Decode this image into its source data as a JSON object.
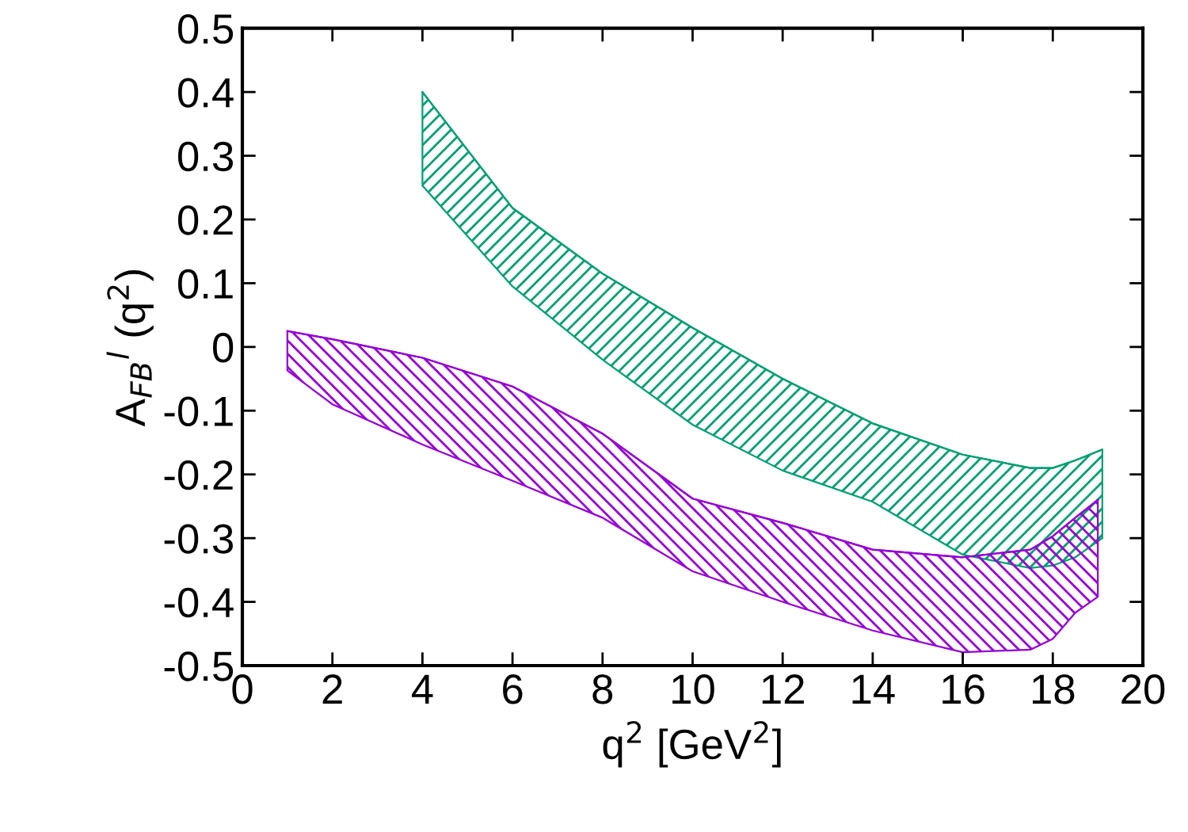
{
  "chart_data": {
    "type": "line",
    "xlabel": "q$^{2}$ [GeV$^{2}$]",
    "ylabel": "A$_{FB}$$^{l}$ (q$^{2}$)",
    "xlim": [
      0,
      20
    ],
    "ylim": [
      -0.5,
      0.5
    ],
    "xticks": [
      0,
      2,
      4,
      6,
      8,
      10,
      12,
      14,
      16,
      18,
      20
    ],
    "yticks": [
      -0.5,
      -0.4,
      -0.3,
      -0.2,
      -0.1,
      0,
      0.1,
      0.2,
      0.3,
      0.4,
      0.5
    ],
    "grid": false,
    "legend": false,
    "series": [
      {
        "color": "#009e73",
        "values": [
          0.4,
          0.218,
          0.115,
          0.03,
          -0.05,
          -0.12,
          -0.169,
          -0.19,
          -0.19,
          -0.178,
          -0.161
        ],
        "x": [
          4,
          6,
          8,
          10,
          12,
          14,
          16,
          17.5,
          18,
          18.5,
          19.1
        ],
        "upper": [
          0.4,
          0.218,
          0.115,
          0.03,
          -0.05,
          -0.12,
          -0.169,
          -0.19,
          -0.19,
          -0.178,
          -0.161
        ],
        "lower": [
          0.253,
          0.095,
          -0.02,
          -0.122,
          -0.194,
          -0.243,
          -0.326,
          -0.347,
          -0.343,
          -0.33,
          -0.3
        ]
      },
      {
        "color": "#9400d3",
        "values": [
          0.025,
          0.012,
          -0.017,
          -0.062,
          -0.136,
          -0.238,
          -0.276,
          -0.318,
          -0.33,
          -0.318,
          -0.297,
          -0.268,
          -0.24
        ],
        "x": [
          1,
          2,
          4,
          6,
          8,
          10,
          12,
          14,
          16,
          17.5,
          18,
          18.5,
          19
        ],
        "upper": [
          0.025,
          0.012,
          -0.017,
          -0.062,
          -0.136,
          -0.238,
          -0.276,
          -0.318,
          -0.33,
          -0.318,
          -0.297,
          -0.268,
          -0.24
        ],
        "lower": [
          -0.037,
          -0.09,
          -0.153,
          -0.21,
          -0.268,
          -0.352,
          -0.4,
          -0.445,
          -0.479,
          -0.475,
          -0.458,
          -0.417,
          -0.392
        ]
      }
    ]
  }
}
